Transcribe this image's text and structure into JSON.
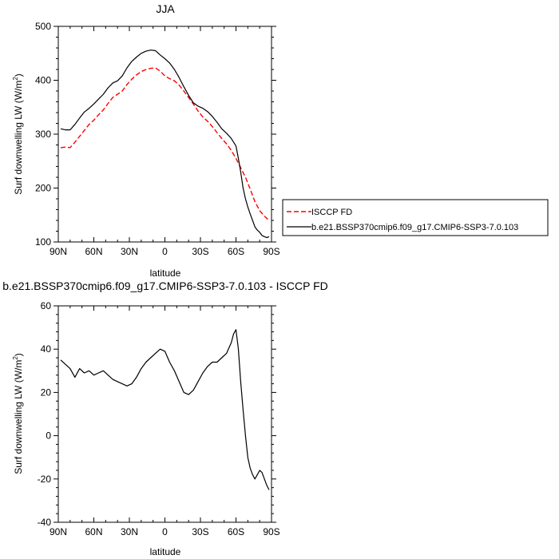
{
  "chart_data": [
    {
      "type": "line",
      "title": "JJA",
      "xlabel": "latitude",
      "ylabel": "Surf downwelling LW (W/m",
      "ylabel_sup": "2",
      "ylabel_end": ")",
      "xlim": [
        90,
        -90
      ],
      "ylim": [
        100,
        500
      ],
      "xticks": [
        90,
        60,
        30,
        0,
        -30,
        -60,
        -90
      ],
      "xtick_labels": [
        "90N",
        "60N",
        "30N",
        "0",
        "30S",
        "60S",
        "90S"
      ],
      "yticks": [
        100,
        200,
        300,
        400,
        500
      ],
      "ytick_labels": [
        "100",
        "200",
        "300",
        "400",
        "500"
      ],
      "legend": "lower-right outside",
      "series": [
        {
          "name": "ISCCP FD",
          "color": "#ff0000",
          "dash": true,
          "x": [
            88,
            84,
            80,
            76,
            72,
            68,
            64,
            60,
            56,
            52,
            48,
            44,
            40,
            36,
            32,
            28,
            24,
            20,
            16,
            12,
            8,
            4,
            0,
            -4,
            -8,
            -12,
            -16,
            -20,
            -24,
            -28,
            -32,
            -36,
            -40,
            -44,
            -48,
            -52,
            -56,
            -60,
            -64,
            -68,
            -72,
            -76,
            -80,
            -84,
            -88
          ],
          "values": [
            275,
            276,
            275,
            285,
            296,
            307,
            318,
            326,
            336,
            345,
            357,
            368,
            374,
            380,
            392,
            402,
            410,
            416,
            420,
            422,
            423,
            417,
            408,
            403,
            399,
            391,
            380,
            368,
            356,
            343,
            332,
            324,
            314,
            303,
            292,
            282,
            270,
            255,
            238,
            220,
            198,
            175,
            158,
            148,
            140
          ]
        },
        {
          "name": "b.e21.BSSP370cmip6.f09_g17.CMIP6-SSP3-7.0.103",
          "color": "#000000",
          "dash": false,
          "x": [
            88,
            84,
            80,
            76,
            72,
            68,
            64,
            60,
            56,
            52,
            48,
            44,
            40,
            36,
            32,
            28,
            24,
            20,
            16,
            12,
            8,
            4,
            0,
            -4,
            -8,
            -12,
            -16,
            -20,
            -24,
            -28,
            -32,
            -36,
            -40,
            -44,
            -48,
            -52,
            -56,
            -60,
            -62,
            -64,
            -66,
            -68,
            -70,
            -72,
            -74,
            -76,
            -78,
            -80,
            -82,
            -84,
            -86,
            -88
          ],
          "values": [
            310,
            308,
            308,
            318,
            330,
            341,
            348,
            356,
            365,
            374,
            386,
            395,
            399,
            408,
            423,
            435,
            443,
            450,
            454,
            456,
            455,
            447,
            440,
            432,
            420,
            405,
            388,
            372,
            358,
            352,
            348,
            342,
            333,
            322,
            310,
            302,
            292,
            278,
            255,
            230,
            200,
            180,
            165,
            152,
            140,
            128,
            122,
            118,
            112,
            110,
            108,
            110
          ]
        }
      ]
    },
    {
      "type": "line",
      "title": "b.e21.BSSP370cmip6.f09_g17.CMIP6-SSP3-7.0.103 - ISCCP FD",
      "xlabel": "latitude",
      "ylabel": "Surf downwelling LW (W/m",
      "ylabel_sup": "2",
      "ylabel_end": ")",
      "xlim": [
        90,
        -90
      ],
      "ylim": [
        -40,
        60
      ],
      "xticks": [
        90,
        60,
        30,
        0,
        -30,
        -60,
        -90
      ],
      "xtick_labels": [
        "90N",
        "60N",
        "30N",
        "0",
        "30S",
        "60S",
        "90S"
      ],
      "yticks": [
        -40,
        -20,
        0,
        20,
        40,
        60
      ],
      "ytick_labels": [
        "-40",
        "-20",
        "0",
        "20",
        "40",
        "60"
      ],
      "series": [
        {
          "name": "",
          "color": "#000000",
          "dash": false,
          "x": [
            88,
            84,
            80,
            76,
            72,
            68,
            64,
            60,
            56,
            52,
            48,
            44,
            40,
            36,
            32,
            28,
            24,
            20,
            16,
            12,
            8,
            4,
            0,
            -4,
            -8,
            -12,
            -16,
            -20,
            -24,
            -28,
            -32,
            -36,
            -40,
            -44,
            -48,
            -52,
            -56,
            -58,
            -60,
            -62,
            -64,
            -66,
            -68,
            -70,
            -72,
            -74,
            -76,
            -78,
            -80,
            -82,
            -84,
            -86,
            -88
          ],
          "values": [
            35,
            33,
            31,
            27,
            31,
            29,
            30,
            28,
            29,
            30,
            28,
            26,
            25,
            24,
            23,
            24,
            27,
            31,
            34,
            36,
            38,
            40,
            39,
            34,
            30,
            25,
            20,
            19,
            21,
            25,
            29,
            32,
            34,
            34,
            36,
            38,
            43,
            47,
            49,
            40,
            25,
            12,
            0,
            -10,
            -15,
            -18,
            -20,
            -18,
            -16,
            -17,
            -20,
            -23,
            -25
          ]
        }
      ]
    }
  ]
}
